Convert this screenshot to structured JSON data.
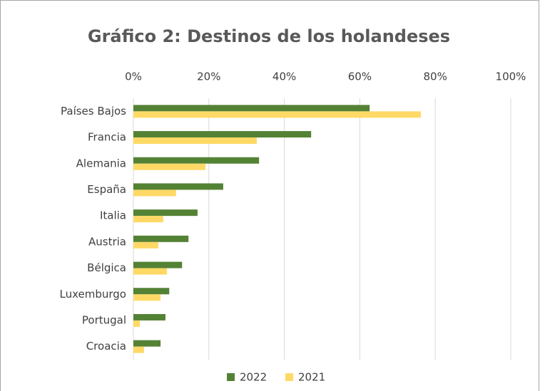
{
  "chart_data": {
    "type": "barh",
    "title": "Gráfico 2: Destinos de los holandeses",
    "categories": [
      "Países Bajos",
      "Francia",
      "Alemania",
      "España",
      "Italia",
      "Austria",
      "Bélgica",
      "Luxemburgo",
      "Portugal",
      "Croacia"
    ],
    "series": [
      {
        "name": "2022",
        "color": "#548235",
        "values": [
          62.6,
          47.1,
          33.3,
          23.8,
          17.0,
          14.6,
          12.9,
          9.5,
          8.5,
          7.2
        ]
      },
      {
        "name": "2021",
        "color": "#ffd966",
        "values": [
          76.2,
          32.7,
          19.1,
          11.3,
          7.9,
          6.6,
          8.9,
          7.2,
          1.7,
          2.8
        ]
      }
    ],
    "xlim": [
      0,
      100
    ],
    "xticks": [
      {
        "value": 0,
        "label": "0%"
      },
      {
        "value": 20,
        "label": "20%"
      },
      {
        "value": 40,
        "label": "40%"
      },
      {
        "value": 60,
        "label": "60%"
      },
      {
        "value": 80,
        "label": "80%"
      },
      {
        "value": 100,
        "label": "100%"
      }
    ],
    "grid": true,
    "legend": "bottom"
  }
}
